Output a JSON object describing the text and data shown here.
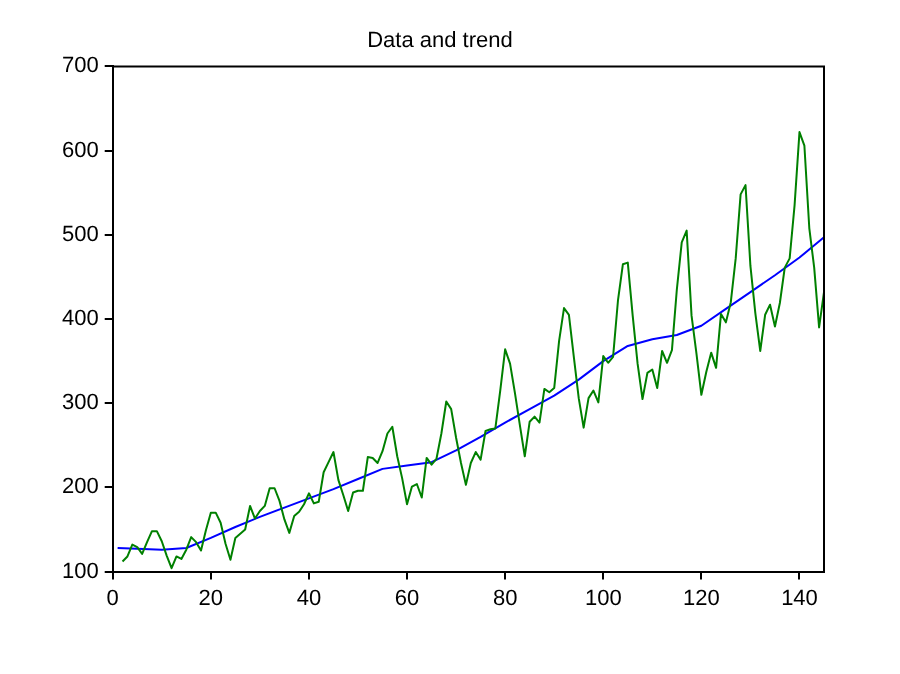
{
  "chart_data": {
    "type": "line",
    "title": "Data and trend",
    "xlim": [
      0,
      145
    ],
    "xticks": [
      0,
      20,
      40,
      60,
      80,
      100,
      120,
      140
    ],
    "ylim": [
      100,
      700
    ],
    "yticks": [
      100,
      200,
      300,
      400,
      500,
      600,
      700
    ],
    "grid": false,
    "legend": false,
    "marker": "none",
    "series": [
      {
        "color": "#008000",
        "x": [
          2,
          3,
          4,
          5,
          6,
          7,
          8,
          9,
          10,
          11,
          12,
          13,
          14,
          15,
          16,
          17,
          18,
          19,
          20,
          21,
          22,
          23,
          24,
          25,
          26,
          27,
          28,
          29,
          30,
          31,
          32,
          33,
          34,
          35,
          36,
          37,
          38,
          39,
          40,
          41,
          42,
          43,
          44,
          45,
          46,
          47,
          48,
          49,
          50,
          51,
          52,
          53,
          54,
          55,
          56,
          57,
          58,
          59,
          60,
          61,
          62,
          63,
          64,
          65,
          66,
          67,
          68,
          69,
          70,
          71,
          72,
          73,
          74,
          75,
          76,
          77,
          78,
          79,
          80,
          81,
          82,
          83,
          84,
          85,
          86,
          87,
          88,
          89,
          90,
          91,
          92,
          93,
          94,
          95,
          96,
          97,
          98,
          99,
          100,
          101,
          102,
          103,
          104,
          105,
          106,
          107,
          108,
          109,
          110,
          111,
          112,
          113,
          114,
          115,
          116,
          117,
          118,
          119,
          120,
          121,
          122,
          123,
          124,
          125,
          126,
          127,
          128,
          129,
          130,
          131,
          132,
          133,
          134,
          135,
          136,
          137,
          138,
          139,
          140,
          141,
          142,
          143,
          144,
          145
        ],
        "values": [
          112,
          118,
          132,
          129,
          121,
          135,
          148,
          148,
          136,
          119,
          104,
          118,
          115,
          126,
          141,
          135,
          125,
          149,
          170,
          170,
          158,
          133,
          114,
          140,
          145,
          150,
          178,
          163,
          172,
          178,
          199,
          199,
          184,
          162,
          146,
          166,
          171,
          180,
          193,
          181,
          183,
          218,
          230,
          242,
          209,
          191,
          172,
          194,
          196,
          196,
          236,
          235,
          229,
          243,
          264,
          272,
          237,
          211,
          180,
          201,
          204,
          188,
          235,
          227,
          234,
          264,
          302,
          293,
          259,
          229,
          203,
          229,
          242,
          233,
          267,
          269,
          270,
          315,
          364,
          347,
          312,
          274,
          237,
          278,
          284,
          277,
          317,
          313,
          318,
          374,
          413,
          405,
          355,
          306,
          271,
          306,
          315,
          301,
          356,
          348,
          355,
          422,
          465,
          467,
          404,
          347,
          305,
          336,
          340,
          318,
          362,
          348,
          363,
          435,
          491,
          505,
          404,
          359,
          310,
          337,
          360,
          342,
          406,
          396,
          420,
          472,
          548,
          559,
          463,
          407,
          362,
          405,
          417,
          391,
          419,
          461,
          472,
          535,
          622,
          606,
          508,
          461,
          390,
          432
        ]
      },
      {
        "color": "#0000ff",
        "x": [
          1,
          5,
          10,
          15,
          20,
          25,
          30,
          35,
          40,
          45,
          50,
          55,
          60,
          65,
          70,
          75,
          80,
          85,
          90,
          95,
          100,
          105,
          110,
          115,
          120,
          125,
          130,
          135,
          140,
          145
        ],
        "values": [
          128,
          127,
          126,
          128,
          140,
          153,
          165,
          176,
          187,
          198,
          210,
          222,
          226,
          230,
          244,
          260,
          277,
          293,
          309,
          328,
          350,
          368,
          376,
          381,
          392,
          412,
          432,
          452,
          473,
          497
        ]
      }
    ]
  }
}
